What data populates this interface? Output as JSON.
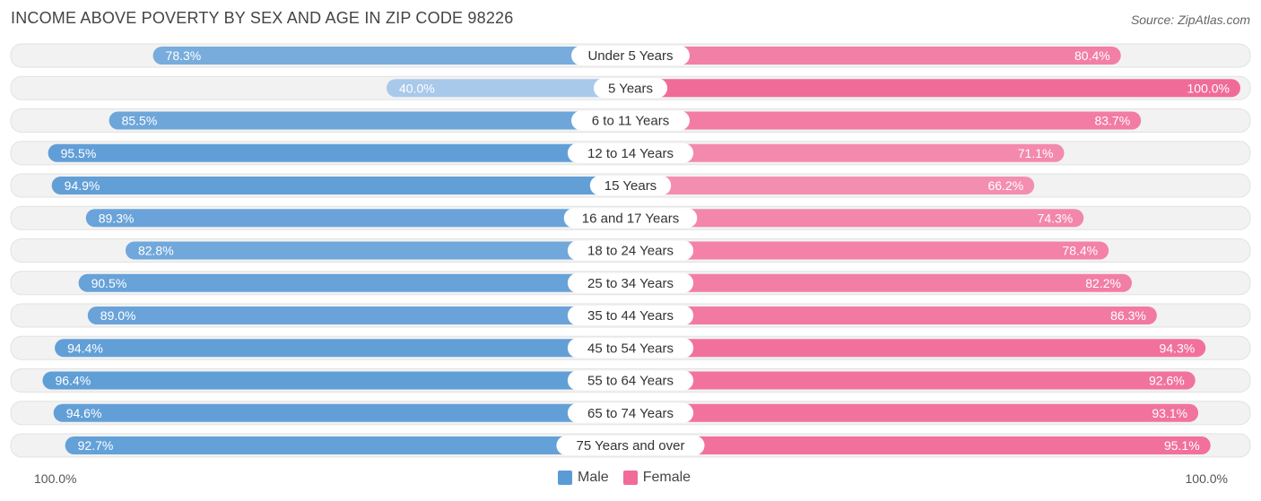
{
  "title": "INCOME ABOVE POVERTY BY SEX AND AGE IN ZIP CODE 98226",
  "source": "Source: ZipAtlas.com",
  "axis": {
    "left_label": "100.0%",
    "right_label": "100.0%"
  },
  "legend": {
    "male_label": "Male",
    "female_label": "Female"
  },
  "colors": {
    "male_strong": "#5b9bd5",
    "male_light": "#a9c9eb",
    "female_strong": "#f06b98",
    "female_light": "#f7a9c4",
    "row_bg": "#efefef"
  },
  "chart_data": {
    "type": "bar",
    "orientation": "horizontal-diverging",
    "categories": [
      "Under 5 Years",
      "5 Years",
      "6 to 11 Years",
      "12 to 14 Years",
      "15 Years",
      "16 and 17 Years",
      "18 to 24 Years",
      "25 to 34 Years",
      "35 to 44 Years",
      "45 to 54 Years",
      "55 to 64 Years",
      "65 to 74 Years",
      "75 Years and over"
    ],
    "series": [
      {
        "name": "Male",
        "values": [
          78.3,
          40.0,
          85.5,
          95.5,
          94.9,
          89.3,
          82.8,
          90.5,
          89.0,
          94.4,
          96.4,
          94.6,
          92.7
        ],
        "labels": [
          "78.3%",
          "40.0%",
          "85.5%",
          "95.5%",
          "94.9%",
          "89.3%",
          "82.8%",
          "90.5%",
          "89.0%",
          "94.4%",
          "96.4%",
          "94.6%",
          "92.7%"
        ]
      },
      {
        "name": "Female",
        "values": [
          80.4,
          100.0,
          83.7,
          71.1,
          66.2,
          74.3,
          78.4,
          82.2,
          86.3,
          94.3,
          92.6,
          93.1,
          95.1
        ],
        "labels": [
          "80.4%",
          "100.0%",
          "83.7%",
          "71.1%",
          "66.2%",
          "74.3%",
          "78.4%",
          "82.2%",
          "86.3%",
          "94.3%",
          "92.6%",
          "93.1%",
          "95.1%"
        ]
      }
    ],
    "xlim": [
      0,
      100
    ],
    "legend_position": "bottom-center"
  }
}
